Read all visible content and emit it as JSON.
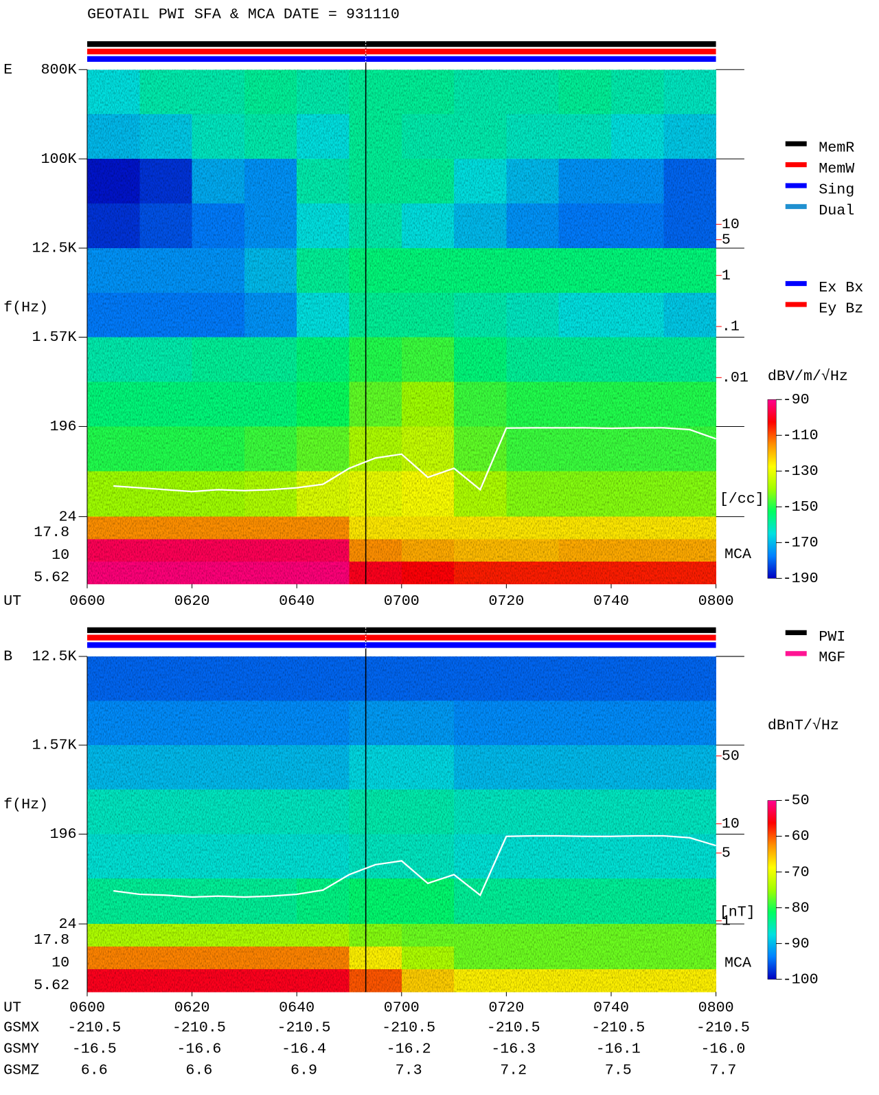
{
  "title": "GEOTAIL  PWI SFA & MCA   DATE = 931110",
  "chart_data": [
    {
      "type": "spectrogram",
      "panel_label": "E",
      "y_label": "f(Hz)",
      "x_label": "UT",
      "log_y": true,
      "ylim": [
        24,
        800000
      ],
      "yticks": [
        {
          "value": 800000,
          "label": "800K"
        },
        {
          "value": 100000,
          "label": "100K"
        },
        {
          "value": 12500,
          "label": "12.5K"
        },
        {
          "value": 1570,
          "label": "1.57K"
        },
        196,
        24
      ],
      "xlim": [
        0,
        120
      ],
      "xticks": [
        {
          "value": 0,
          "label": "0600"
        },
        {
          "value": 20,
          "label": "0620"
        },
        {
          "value": 40,
          "label": "0640"
        },
        {
          "value": 60,
          "label": "0700"
        },
        {
          "value": 80,
          "label": "0720"
        },
        {
          "value": 100,
          "label": "0740"
        },
        {
          "value": 120,
          "label": "0800"
        }
      ],
      "time_bins": [
        0,
        10,
        20,
        30,
        40,
        50,
        60,
        70,
        80,
        90,
        100,
        110,
        120
      ],
      "freq_bins": [
        800000,
        283000,
        100000,
        35400,
        12500,
        4420,
        1570,
        555,
        196,
        69.3,
        24
      ],
      "z": [
        [
          -165,
          -160,
          -160,
          -158,
          -160,
          -158,
          -158,
          -160,
          -160,
          -158,
          -160,
          -162
        ],
        [
          -170,
          -168,
          -162,
          -160,
          -165,
          -158,
          -160,
          -160,
          -162,
          -162,
          -165,
          -168
        ],
        [
          -188,
          -185,
          -172,
          -175,
          -160,
          -158,
          -158,
          -165,
          -170,
          -175,
          -175,
          -180
        ],
        [
          -185,
          -182,
          -178,
          -175,
          -165,
          -160,
          -165,
          -170,
          -175,
          -178,
          -178,
          -180
        ],
        [
          -175,
          -175,
          -175,
          -170,
          -158,
          -155,
          -155,
          -155,
          -155,
          -155,
          -155,
          -155
        ],
        [
          -178,
          -178,
          -178,
          -175,
          -165,
          -158,
          -158,
          -160,
          -162,
          -165,
          -165,
          -168
        ],
        [
          -160,
          -160,
          -158,
          -158,
          -155,
          -150,
          -148,
          -155,
          -158,
          -158,
          -158,
          -158
        ],
        [
          -155,
          -155,
          -155,
          -155,
          -152,
          -145,
          -140,
          -148,
          -150,
          -150,
          -150,
          -150
        ],
        [
          -150,
          -150,
          -150,
          -148,
          -145,
          -138,
          -135,
          -145,
          -148,
          -148,
          -148,
          -148
        ],
        [
          -140,
          -140,
          -140,
          -138,
          -132,
          -130,
          -128,
          -138,
          -142,
          -142,
          -142,
          -142
        ]
      ],
      "mca": {
        "label": "MCA",
        "yticks": [
          17.8,
          10,
          5.62
        ],
        "values": [
          [
            -115,
            -115,
            -115,
            -115,
            -115,
            -125,
            -125,
            -125,
            -125,
            -125,
            -125,
            -125
          ],
          [
            -95,
            -95,
            -95,
            -95,
            -95,
            -115,
            -118,
            -120,
            -120,
            -118,
            -118,
            -118
          ],
          [
            -92,
            -92,
            -92,
            -92,
            -92,
            -100,
            -102,
            -105,
            -105,
            -105,
            -105,
            -105
          ]
        ]
      },
      "trace": {
        "color": "#ffffff",
        "x": [
          5,
          10,
          15,
          20,
          25,
          30,
          35,
          40,
          45,
          50,
          55,
          60,
          65,
          70,
          75,
          80,
          85,
          90,
          95,
          100,
          105,
          110,
          115,
          120
        ],
        "values": [
          49,
          47,
          45,
          43,
          45,
          44,
          45,
          47,
          51,
          74,
          94,
          103,
          60,
          74,
          45,
          189,
          190,
          190,
          190,
          188,
          190,
          190,
          182,
          147
        ]
      },
      "y2_label": "[/cc]",
      "y2_color": "#ff0000",
      "y2lim": [
        1.9e-05,
        10660
      ],
      "y2ticks": [
        10,
        5,
        1,
        {
          "value": 0.1,
          "label": ".1"
        },
        {
          "value": 0.01,
          "label": ".01"
        }
      ],
      "colorbar": {
        "label": "dBV/m/√Hz",
        "clim": [
          -190,
          -90
        ],
        "ticks": [
          -90,
          -110,
          -130,
          -150,
          -170,
          -190
        ],
        "colormap": [
          "#0000c0",
          "#0080ff",
          "#00e0e0",
          "#00ff60",
          "#a0ff00",
          "#ffff00",
          "#ff9000",
          "#ff0000",
          "#ff0090"
        ]
      },
      "status_colors": [
        "#000000",
        "#ff0000",
        "#0000ff"
      ],
      "legend": [
        {
          "name": "MemR",
          "color": "#000000"
        },
        {
          "name": "MemW",
          "color": "#ff0000"
        },
        {
          "name": "Sing",
          "color": "#0000ff"
        },
        {
          "name": "Dual",
          "color": "#2090d0"
        }
      ],
      "legend2": [
        {
          "name": "Ex Bx",
          "color": "#0000ff"
        },
        {
          "name": "Ey Bz",
          "color": "#ff0000"
        }
      ]
    },
    {
      "type": "spectrogram",
      "panel_label": "B",
      "y_label": "f(Hz)",
      "x_label": "UT",
      "log_y": true,
      "ylim": [
        24,
        12500
      ],
      "yticks": [
        {
          "value": 12500,
          "label": "12.5K"
        },
        {
          "value": 1570,
          "label": "1.57K"
        },
        196,
        24
      ],
      "xlim": [
        0,
        120
      ],
      "xticks": [
        {
          "value": 0,
          "label": "0600"
        },
        {
          "value": 20,
          "label": "0620"
        },
        {
          "value": 40,
          "label": "0640"
        },
        {
          "value": 60,
          "label": "0700"
        },
        {
          "value": 80,
          "label": "0720"
        },
        {
          "value": 100,
          "label": "0740"
        },
        {
          "value": 120,
          "label": "0800"
        }
      ],
      "time_bins": [
        0,
        10,
        20,
        30,
        40,
        50,
        60,
        70,
        80,
        90,
        100,
        110,
        120
      ],
      "freq_bins": [
        12500,
        4420,
        1570,
        555,
        196,
        69.3,
        24
      ],
      "z": [
        [
          -95,
          -95,
          -95,
          -95,
          -95,
          -95,
          -95,
          -95,
          -95,
          -95,
          -95,
          -95
        ],
        [
          -93,
          -93,
          -93,
          -93,
          -93,
          -92,
          -92,
          -93,
          -93,
          -93,
          -93,
          -93
        ],
        [
          -90,
          -90,
          -90,
          -90,
          -90,
          -88,
          -88,
          -90,
          -90,
          -90,
          -90,
          -90
        ],
        [
          -86,
          -86,
          -86,
          -86,
          -86,
          -85,
          -85,
          -86,
          -86,
          -86,
          -86,
          -86
        ],
        [
          -87,
          -87,
          -87,
          -87,
          -87,
          -86,
          -86,
          -87,
          -87,
          -87,
          -87,
          -87
        ],
        [
          -84,
          -84,
          -84,
          -84,
          -83,
          -82,
          -82,
          -84,
          -84,
          -84,
          -84,
          -84
        ]
      ],
      "mca": {
        "label": "MCA",
        "yticks": [
          17.8,
          10,
          5.62
        ],
        "values": [
          [
            -74,
            -74,
            -74,
            -74,
            -74,
            -76,
            -77,
            -77,
            -77,
            -77,
            -77,
            -77
          ],
          [
            -62,
            -62,
            -62,
            -62,
            -62,
            -68,
            -74,
            -77,
            -77,
            -77,
            -77,
            -77
          ],
          [
            -55,
            -55,
            -55,
            -55,
            -55,
            -60,
            -66,
            -68,
            -68,
            -68,
            -68,
            -68
          ]
        ]
      },
      "trace": {
        "color": "#ffffff",
        "x": [
          5,
          10,
          15,
          20,
          25,
          30,
          35,
          40,
          45,
          50,
          55,
          60,
          65,
          70,
          75,
          80,
          85,
          90,
          95,
          100,
          105,
          110,
          115,
          120
        ],
        "values": [
          52,
          48,
          47,
          45,
          46,
          45,
          46,
          48,
          53,
          76,
          96,
          105,
          62,
          76,
          47,
          186,
          188,
          188,
          186,
          186,
          188,
          188,
          180,
          150
        ]
      },
      "y2_label": "[nT]",
      "y2_color": "#ff0000",
      "y2lim": [
        0.93,
        530
      ],
      "y2ticks": [
        50,
        10,
        5,
        1
      ],
      "colorbar": {
        "label": "dBnT/√Hz",
        "clim": [
          -100,
          -50
        ],
        "ticks": [
          -50,
          -60,
          -70,
          -80,
          -90,
          -100
        ],
        "colormap": [
          "#0000c0",
          "#0080ff",
          "#00e0e0",
          "#00ff60",
          "#a0ff00",
          "#ffff00",
          "#ff9000",
          "#ff0000",
          "#ff0090"
        ]
      },
      "status_colors": [
        "#000000",
        "#ff0000",
        "#0000ff"
      ],
      "legend": [
        {
          "name": "PWI",
          "color": "#000000"
        },
        {
          "name": "MGF",
          "color": "#ff1493"
        }
      ]
    }
  ],
  "orbit": {
    "rows": [
      {
        "name": "GSMX",
        "values": [
          "-210.5",
          "-210.5",
          "-210.5",
          "-210.5",
          "-210.5",
          "-210.5",
          "-210.5"
        ]
      },
      {
        "name": "GSMY",
        "values": [
          "-16.5",
          "-16.6",
          "-16.4",
          "-16.2",
          "-16.3",
          "-16.1",
          "-16.0"
        ]
      },
      {
        "name": "GSMZ",
        "values": [
          "6.6",
          "6.6",
          "6.9",
          "7.3",
          "7.2",
          "7.5",
          "7.7"
        ]
      }
    ]
  }
}
